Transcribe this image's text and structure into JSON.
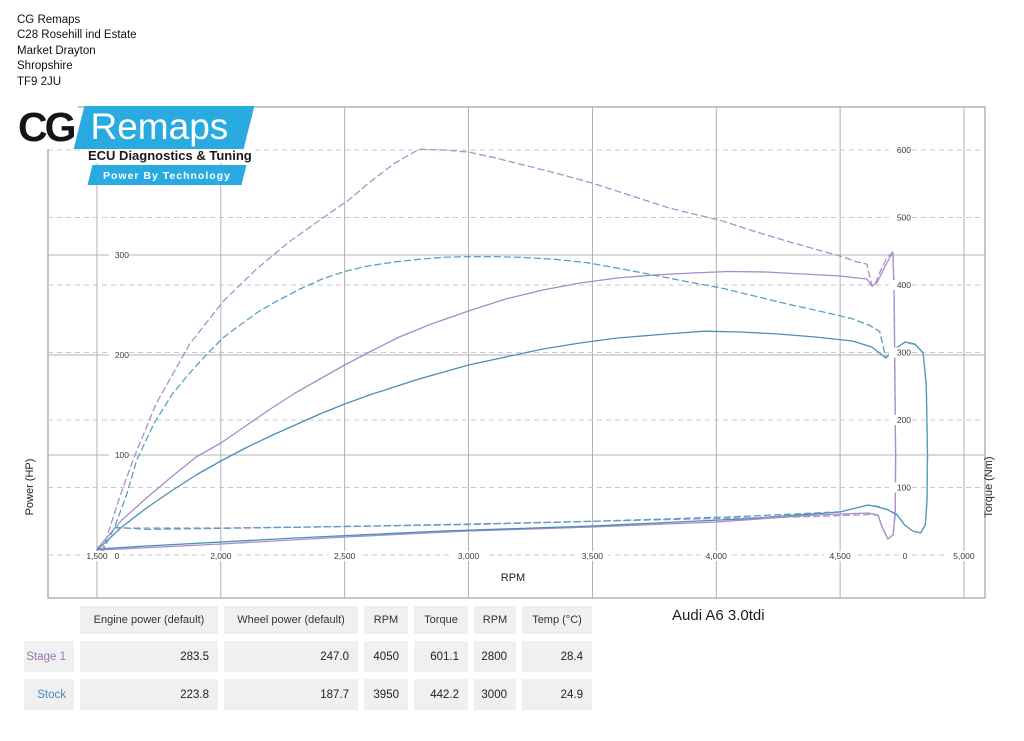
{
  "address": {
    "lines": [
      "CG Remaps",
      "C28 Rosehill ind Estate",
      "Market Drayton",
      "Shropshire",
      "TF9 2JU"
    ]
  },
  "logo": {
    "cg": "CG",
    "remaps": "Remaps",
    "tagline": "ECU Diagnostics & Tuning",
    "power_by": "Power By Technology",
    "accent": "#29abe2"
  },
  "vehicle_label": "Audi A6 3.0tdi",
  "chart_data": {
    "type": "line",
    "xlabel": "RPM",
    "ylabel_left": "Power (HP)",
    "ylabel_right": "Torque (Nm)",
    "x_range_rpm": [
      1300,
      5090
    ],
    "power_range_hp": [
      -45,
      450
    ],
    "torque_range_nm": [
      -65,
      665
    ],
    "grid": "solid horizontal at 100/200/300 HP, dashed horizontal at 100-600 Nm and zero, solid vertical each 500 RPM",
    "legend_position": "none",
    "colors": {
      "stage1": "#a78cc8",
      "stock": "#4a8fb8",
      "stock_dashed": "#5d9fc2",
      "grid_solid": "#9e9e9e",
      "grid_dashed": "#c8c8c8",
      "border": "#8f8f8f",
      "tick_text": "#3a3a3a"
    },
    "x_ticks": [
      {
        "v": 1500,
        "label": "1,500"
      },
      {
        "v": 2000,
        "label": "2,000"
      },
      {
        "v": 2500,
        "label": "2,500"
      },
      {
        "v": 3000,
        "label": "3,000"
      },
      {
        "v": 3500,
        "label": "3,500"
      },
      {
        "v": 4000,
        "label": "4,000"
      },
      {
        "v": 4500,
        "label": "4,500"
      },
      {
        "v": 5000,
        "label": "5,000"
      }
    ],
    "power_ticks": [
      {
        "v": 0,
        "label": "0"
      },
      {
        "v": 100,
        "label": "100"
      },
      {
        "v": 200,
        "label": "200"
      },
      {
        "v": 300,
        "label": "300"
      }
    ],
    "torque_ticks": [
      {
        "v": 0,
        "label": "0"
      },
      {
        "v": 100,
        "label": "100"
      },
      {
        "v": 200,
        "label": "200"
      },
      {
        "v": 300,
        "label": "300"
      },
      {
        "v": 400,
        "label": "400"
      },
      {
        "v": 500,
        "label": "500"
      },
      {
        "v": 600,
        "label": "600"
      }
    ],
    "series": [
      {
        "name": "Stage 1 power",
        "axis": "power",
        "style": "solid",
        "color": "#a78cc8",
        "points": [
          [
            1500,
            6
          ],
          [
            1600,
            35
          ],
          [
            1700,
            57
          ],
          [
            1800,
            78
          ],
          [
            1900,
            98
          ],
          [
            2000,
            112
          ],
          [
            2100,
            129
          ],
          [
            2200,
            146
          ],
          [
            2300,
            162
          ],
          [
            2400,
            176
          ],
          [
            2500,
            190
          ],
          [
            2600,
            203
          ],
          [
            2720,
            218
          ],
          [
            2850,
            231
          ],
          [
            3000,
            244
          ],
          [
            3150,
            256
          ],
          [
            3300,
            265
          ],
          [
            3450,
            272
          ],
          [
            3600,
            277
          ],
          [
            3750,
            280
          ],
          [
            3900,
            282
          ],
          [
            4050,
            283.5
          ],
          [
            4200,
            283
          ],
          [
            4350,
            281
          ],
          [
            4500,
            279
          ],
          [
            4570,
            277
          ],
          [
            4608,
            276
          ],
          [
            4628,
            269
          ],
          [
            4648,
            272
          ],
          [
            4680,
            288
          ],
          [
            4713,
            303
          ],
          [
            4718,
            260
          ],
          [
            4721,
            180
          ],
          [
            4724,
            100
          ],
          [
            4723,
            45
          ],
          [
            4714,
            20
          ],
          [
            4693,
            16
          ],
          [
            4670,
            28
          ],
          [
            4653,
            40
          ],
          [
            4613,
            42
          ]
        ],
        "return_points": [
          [
            4400,
            40
          ],
          [
            4000,
            33
          ],
          [
            3500,
            28
          ],
          [
            3000,
            24
          ],
          [
            2500,
            18
          ],
          [
            2000,
            11
          ],
          [
            1505,
            5
          ]
        ]
      },
      {
        "name": "Stock power",
        "axis": "power",
        "style": "solid",
        "color": "#4a8fb8",
        "points": [
          [
            1500,
            5
          ],
          [
            1600,
            28
          ],
          [
            1700,
            47
          ],
          [
            1800,
            64
          ],
          [
            1900,
            80
          ],
          [
            2000,
            94
          ],
          [
            2100,
            107
          ],
          [
            2200,
            119
          ],
          [
            2300,
            130
          ],
          [
            2400,
            141
          ],
          [
            2500,
            151
          ],
          [
            2600,
            160
          ],
          [
            2700,
            168
          ],
          [
            2800,
            176
          ],
          [
            2900,
            183
          ],
          [
            3000,
            190
          ],
          [
            3150,
            198
          ],
          [
            3300,
            206
          ],
          [
            3450,
            212
          ],
          [
            3600,
            217
          ],
          [
            3750,
            220
          ],
          [
            3850,
            222
          ],
          [
            3950,
            223.8
          ],
          [
            4100,
            223
          ],
          [
            4250,
            221
          ],
          [
            4400,
            218
          ],
          [
            4550,
            214
          ],
          [
            4628,
            208
          ],
          [
            4685,
            197
          ],
          [
            4720,
            206
          ],
          [
            4762,
            213
          ],
          [
            4802,
            211
          ],
          [
            4835,
            202
          ],
          [
            4848,
            170
          ],
          [
            4853,
            100
          ],
          [
            4851,
            55
          ],
          [
            4844,
            30
          ],
          [
            4825,
            22
          ],
          [
            4794,
            24
          ],
          [
            4760,
            30
          ],
          [
            4730,
            40
          ],
          [
            4694,
            45
          ],
          [
            4653,
            48
          ],
          [
            4613,
            50
          ]
        ],
        "return_points": [
          [
            4500,
            43
          ],
          [
            4100,
            36
          ],
          [
            3500,
            29
          ],
          [
            2900,
            24
          ],
          [
            2300,
            17
          ],
          [
            1700,
            9
          ],
          [
            1505,
            6
          ]
        ]
      },
      {
        "name": "Stage 1 torque",
        "axis": "torque",
        "style": "dashed",
        "color": "#ab90c9",
        "points": [
          [
            1520,
            5
          ],
          [
            1560,
            50
          ],
          [
            1600,
            95
          ],
          [
            1650,
            145
          ],
          [
            1740,
            225
          ],
          [
            1875,
            313
          ],
          [
            2010,
            376
          ],
          [
            2145,
            424
          ],
          [
            2280,
            465
          ],
          [
            2410,
            499
          ],
          [
            2520,
            527
          ],
          [
            2590,
            549
          ],
          [
            2700,
            580
          ],
          [
            2800,
            601
          ],
          [
            2900,
            600
          ],
          [
            3000,
            597
          ],
          [
            3100,
            589
          ],
          [
            3210,
            579
          ],
          [
            3350,
            566
          ],
          [
            3500,
            551
          ],
          [
            3650,
            533
          ],
          [
            3810,
            514
          ],
          [
            3910,
            505
          ],
          [
            4015,
            496
          ],
          [
            4150,
            480
          ],
          [
            4285,
            465
          ],
          [
            4400,
            453
          ],
          [
            4500,
            443
          ],
          [
            4570,
            434
          ],
          [
            4608,
            431
          ],
          [
            4618,
            415
          ],
          [
            4630,
            398
          ],
          [
            4642,
            402
          ],
          [
            4662,
            420
          ],
          [
            4688,
            440
          ],
          [
            4713,
            449
          ],
          [
            4718,
            400
          ],
          [
            4721,
            300
          ],
          [
            4724,
            150
          ],
          [
            4723,
            60
          ],
          [
            4714,
            30
          ],
          [
            4693,
            24
          ],
          [
            4670,
            40
          ],
          [
            4653,
            59
          ],
          [
            4620,
            60
          ]
        ],
        "return_points": [
          [
            4400,
            57
          ],
          [
            4000,
            54
          ],
          [
            3500,
            50
          ],
          [
            3000,
            45
          ],
          [
            2500,
            42
          ],
          [
            2000,
            40
          ],
          [
            1573,
            40
          ]
        ]
      },
      {
        "name": "Stock torque",
        "axis": "torque",
        "style": "dashed",
        "color": "#5d9fc2",
        "points": [
          [
            1520,
            4
          ],
          [
            1570,
            40
          ],
          [
            1620,
            90
          ],
          [
            1660,
            140
          ],
          [
            1730,
            195
          ],
          [
            1805,
            239
          ],
          [
            1875,
            270
          ],
          [
            1945,
            298
          ],
          [
            2010,
            322
          ],
          [
            2075,
            340
          ],
          [
            2150,
            360
          ],
          [
            2225,
            376
          ],
          [
            2320,
            394
          ],
          [
            2410,
            409
          ],
          [
            2500,
            420
          ],
          [
            2590,
            428
          ],
          [
            2700,
            434
          ],
          [
            2800,
            438
          ],
          [
            2900,
            441
          ],
          [
            3000,
            442
          ],
          [
            3100,
            442
          ],
          [
            3210,
            441
          ],
          [
            3350,
            438
          ],
          [
            3480,
            433
          ],
          [
            3600,
            425
          ],
          [
            3745,
            415
          ],
          [
            3880,
            405
          ],
          [
            4015,
            396
          ],
          [
            4150,
            384
          ],
          [
            4285,
            372
          ],
          [
            4420,
            361
          ],
          [
            4550,
            350
          ],
          [
            4620,
            340
          ],
          [
            4660,
            331
          ],
          [
            4685,
            292
          ],
          [
            4720,
            305
          ],
          [
            4762,
            315
          ],
          [
            4802,
            312
          ],
          [
            4835,
            300
          ],
          [
            4848,
            250
          ],
          [
            4853,
            150
          ],
          [
            4851,
            80
          ],
          [
            4844,
            45
          ],
          [
            4825,
            33
          ],
          [
            4794,
            35
          ],
          [
            4760,
            45
          ],
          [
            4730,
            60
          ],
          [
            4694,
            67
          ],
          [
            4653,
            72
          ],
          [
            4613,
            74
          ]
        ],
        "return_points": [
          [
            4500,
            64
          ],
          [
            4100,
            57
          ],
          [
            3500,
            50
          ],
          [
            2900,
            45
          ],
          [
            2300,
            41
          ],
          [
            1700,
            38
          ],
          [
            1573,
            41
          ]
        ]
      }
    ]
  },
  "table": {
    "headers": [
      "Engine power (default)",
      "Wheel power (default)",
      "RPM",
      "Torque",
      "RPM",
      "Temp (°C)"
    ],
    "rows": [
      {
        "label": "Stage 1",
        "color": "#9973b3",
        "values": [
          "283.5",
          "247.0",
          "4050",
          "601.1",
          "2800",
          "28.4"
        ]
      },
      {
        "label": "Stock",
        "color": "#4d87c4",
        "values": [
          "223.8",
          "187.7",
          "3950",
          "442.2",
          "3000",
          "24.9"
        ]
      }
    ]
  }
}
